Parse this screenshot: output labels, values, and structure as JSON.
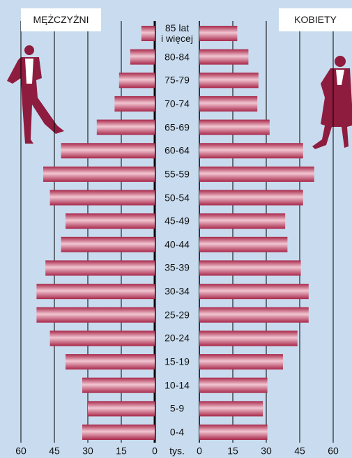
{
  "chart_data": {
    "type": "pyramid",
    "categories": [
      "85 lat\ni więcej",
      "80-84",
      "75-79",
      "70-74",
      "65-69",
      "60-64",
      "55-59",
      "50-54",
      "45-49",
      "40-44",
      "35-39",
      "30-34",
      "25-29",
      "20-24",
      "15-19",
      "10-14",
      "5-9",
      "0-4"
    ],
    "series": [
      {
        "name": "MĘŻCZYŹNI",
        "color": "#a8284a",
        "values": [
          6,
          11,
          16,
          18,
          26,
          42,
          50,
          47,
          40,
          42,
          49,
          53,
          53,
          47,
          40,
          32.5,
          30,
          32.5
        ]
      },
      {
        "name": "KOBIETY",
        "color": "#a8284a",
        "values": [
          17,
          22,
          26.5,
          26,
          31.5,
          46.5,
          51.5,
          46.5,
          38.5,
          39.5,
          45.5,
          49,
          49,
          44,
          37.5,
          30.5,
          28.5,
          30.5
        ]
      }
    ],
    "xlim": [
      0,
      60
    ],
    "xticks": [
      0,
      15,
      30,
      45,
      60
    ],
    "x_label": "tys.",
    "grid": true
  }
}
